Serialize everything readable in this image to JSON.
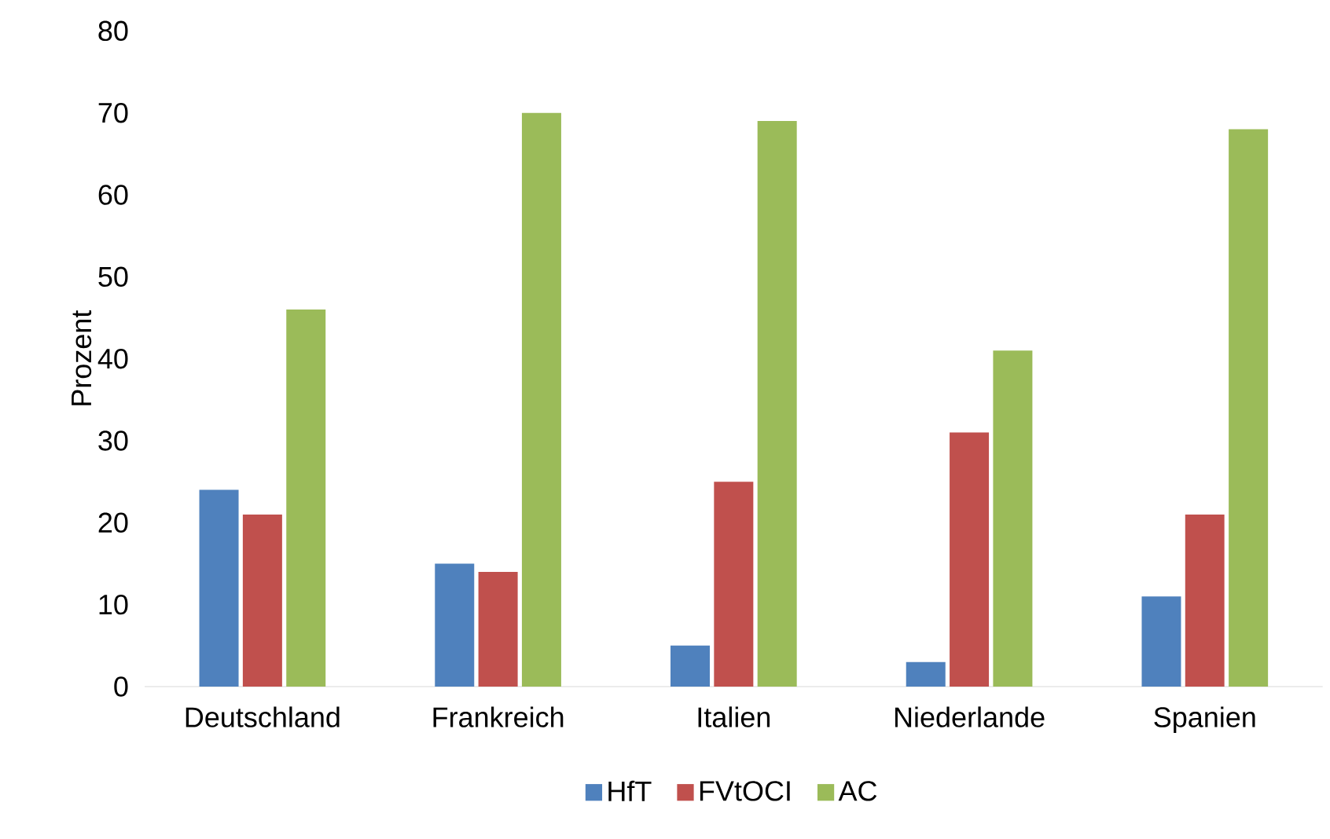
{
  "chart_data": {
    "type": "bar",
    "ylabel": "Prozent",
    "categories": [
      "Deutschland",
      "Frankreich",
      "Italien",
      "Niederlande",
      "Spanien"
    ],
    "series": [
      {
        "name": "HfT",
        "color": "#4f81bd",
        "values": [
          24,
          15,
          5,
          3,
          11
        ]
      },
      {
        "name": "FVtOCI",
        "color": "#c0504d",
        "values": [
          21,
          14,
          25,
          31,
          21
        ]
      },
      {
        "name": "AC",
        "color": "#9bbb59",
        "values": [
          46,
          70,
          69,
          41,
          68
        ]
      }
    ],
    "ylim": [
      0,
      80
    ],
    "yticks": [
      0,
      10,
      20,
      30,
      40,
      50,
      60,
      70,
      80
    ],
    "grid": false,
    "legend": "bottom"
  }
}
